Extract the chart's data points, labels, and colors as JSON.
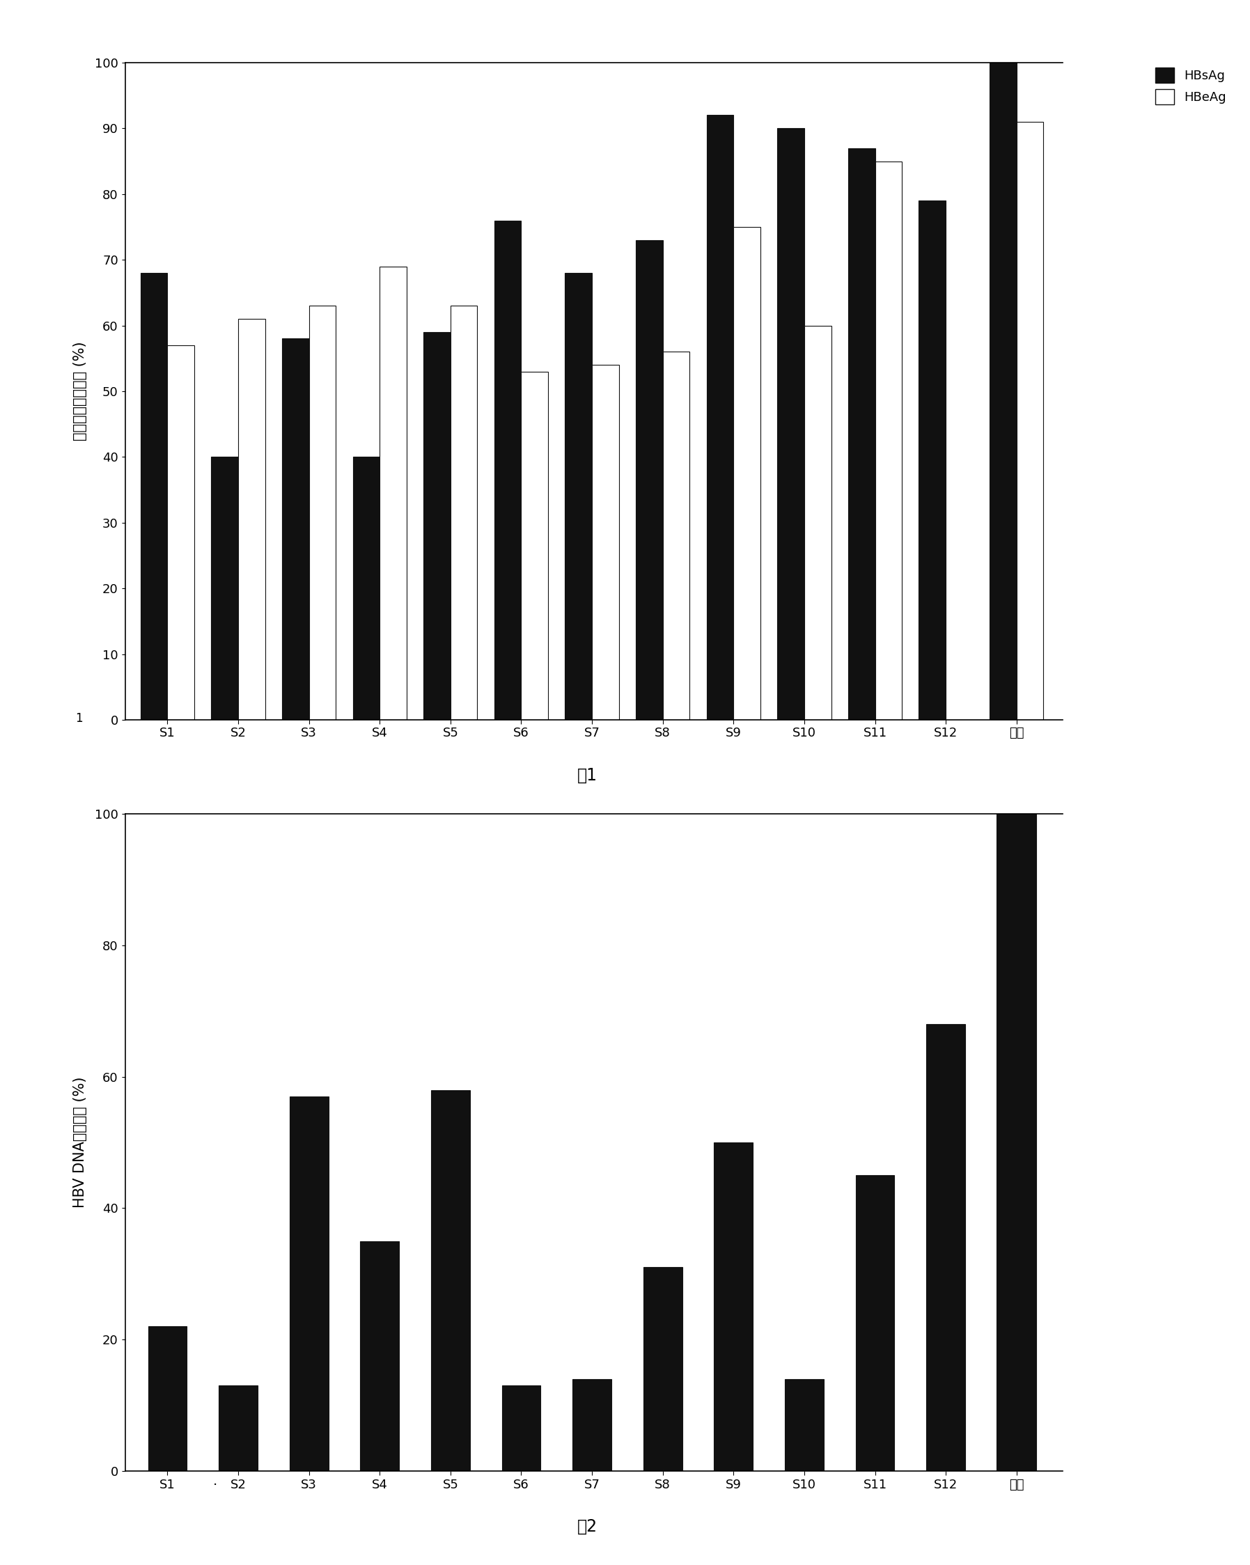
{
  "fig1": {
    "categories": [
      "S1",
      "S2",
      "S3",
      "S4",
      "S5",
      "S6",
      "S7",
      "S8",
      "S9",
      "S10",
      "S11",
      "S12",
      "对照"
    ],
    "HBsAg": [
      68,
      40,
      58,
      40,
      59,
      76,
      68,
      73,
      92,
      90,
      87,
      79,
      100
    ],
    "HBeAg": [
      57,
      61,
      63,
      69,
      63,
      53,
      54,
      56,
      75,
      60,
      85,
      null,
      91
    ],
    "ylabel": "抗原相对表达水平 (%)",
    "title": "图1",
    "ylim": [
      0,
      100
    ],
    "yticks": [
      0,
      10,
      20,
      30,
      40,
      50,
      60,
      70,
      80,
      90,
      100
    ],
    "legend_HBsAg": "HBsAg",
    "legend_HBeAg": "HBeAg"
  },
  "fig2": {
    "categories": [
      "S1",
      "·",
      "S2",
      "S3",
      "S4",
      "S5",
      "S6",
      "S7",
      "S8",
      "S9",
      "S10",
      "S11",
      "S12",
      "对照"
    ],
    "cat_positions": [
      "S1",
      "S2",
      "S3",
      "S4",
      "S5",
      "S6",
      "S7",
      "S8",
      "S9",
      "S10",
      "S11",
      "S12",
      "对照"
    ],
    "values": [
      22,
      13,
      57,
      35,
      58,
      13,
      14,
      31,
      50,
      14,
      45,
      68,
      102
    ],
    "ylabel": "HBV DNA相对水平 (%)",
    "title": "图2",
    "ylim": [
      0,
      100
    ],
    "yticks": [
      0,
      20,
      40,
      60,
      80,
      100
    ]
  },
  "bar_color_dark": "#111111",
  "bar_color_white": "#ffffff",
  "bar_edge_color": "#111111",
  "background_color": "#ffffff",
  "fig1_note": "1",
  "fig2_note": "·"
}
